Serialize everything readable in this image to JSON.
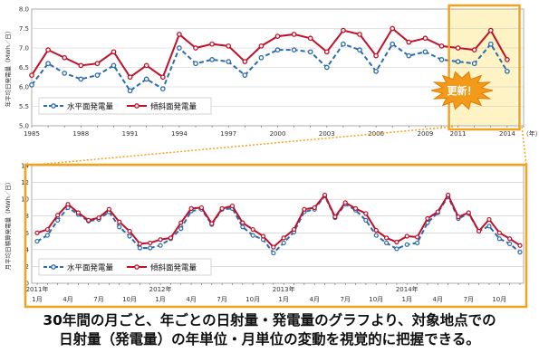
{
  "chart_data": [
    {
      "type": "line",
      "ylabel": "年平均日発電量（MWh／日）",
      "x_unit": "（年）",
      "ylim": [
        5.0,
        8.0
      ],
      "yticks": [
        "5.0",
        "5.5",
        "6.0",
        "6.5",
        "7.0",
        "7.5",
        "8.0"
      ],
      "xticks": [
        "1985",
        "1988",
        "1991",
        "1994",
        "1997",
        "2000",
        "2003",
        "2006",
        "2009",
        "2011",
        "2014"
      ],
      "grid": true,
      "legend_position": "bottom-left",
      "x": [
        1985,
        1986,
        1987,
        1988,
        1989,
        1990,
        1991,
        1992,
        1993,
        1994,
        1995,
        1996,
        1997,
        1998,
        1999,
        2000,
        2001,
        2002,
        2003,
        2004,
        2005,
        2006,
        2007,
        2008,
        2009,
        2010,
        2011,
        2012,
        2013,
        2014
      ],
      "series": [
        {
          "name": "水平面発電量",
          "color": "#2b6cb0",
          "dashed": true,
          "values": [
            6.05,
            6.6,
            6.35,
            6.2,
            6.3,
            6.55,
            5.9,
            6.2,
            5.95,
            7.0,
            6.6,
            6.7,
            6.65,
            6.3,
            6.75,
            6.95,
            6.95,
            6.9,
            6.5,
            7.1,
            6.95,
            6.4,
            7.1,
            6.8,
            6.9,
            6.7,
            6.65,
            6.6,
            7.1,
            6.4
          ]
        },
        {
          "name": "傾斜面発電量",
          "color": "#c0102a",
          "dashed": false,
          "values": [
            6.3,
            6.95,
            6.75,
            6.55,
            6.6,
            6.9,
            6.25,
            6.55,
            6.25,
            7.35,
            7.0,
            7.1,
            7.05,
            6.65,
            7.05,
            7.3,
            7.35,
            7.25,
            6.9,
            7.45,
            7.35,
            6.8,
            7.5,
            7.15,
            7.25,
            7.05,
            7.0,
            6.95,
            7.45,
            6.7
          ]
        }
      ],
      "callout": "更新！"
    },
    {
      "type": "line",
      "ylabel": "月平均日積算発電量（MWh／日）",
      "ylim": [
        0,
        14
      ],
      "yticks": [
        "0",
        "2",
        "4",
        "6",
        "8",
        "10",
        "12",
        "14"
      ],
      "year_labels": [
        "2011年",
        "2012年",
        "2013年",
        "2014年"
      ],
      "month_labels": [
        "1月",
        "4月",
        "7月",
        "10月",
        "1月",
        "4月",
        "7月",
        "10月",
        "1月",
        "4月",
        "7月",
        "10月",
        "1月",
        "4月",
        "7月",
        "10月"
      ],
      "grid": true,
      "legend_position": "bottom-left",
      "series": [
        {
          "name": "水平面発電量",
          "color": "#2b6cb0",
          "dashed": true,
          "values": [
            5.0,
            5.7,
            7.5,
            9.0,
            8.2,
            7.4,
            7.6,
            8.5,
            6.7,
            5.6,
            4.2,
            4.2,
            4.5,
            5.3,
            6.5,
            8.6,
            8.8,
            7.0,
            8.8,
            8.9,
            6.7,
            5.7,
            5.2,
            3.6,
            4.8,
            6.1,
            8.5,
            8.8,
            10.4,
            7.8,
            9.4,
            8.7,
            7.5,
            5.7,
            4.8,
            4.1,
            4.6,
            4.8,
            7.2,
            8.4,
            10.3,
            7.7,
            8.3,
            6.2,
            6.8,
            5.3,
            4.7,
            3.7
          ]
        },
        {
          "name": "傾斜面発電量",
          "color": "#c0102a",
          "dashed": false,
          "values": [
            6.0,
            6.4,
            8.1,
            9.4,
            8.4,
            7.5,
            7.8,
            8.8,
            7.3,
            6.2,
            4.7,
            4.8,
            5.2,
            5.4,
            7.2,
            8.9,
            9.0,
            7.1,
            8.9,
            9.2,
            7.2,
            6.4,
            5.6,
            4.3,
            5.4,
            6.4,
            8.8,
            9.0,
            10.5,
            7.9,
            9.6,
            8.9,
            8.3,
            6.3,
            5.4,
            4.9,
            5.6,
            5.5,
            7.7,
            8.5,
            10.5,
            7.9,
            8.4,
            6.2,
            7.6,
            6.0,
            5.3,
            4.5
          ]
        }
      ]
    }
  ],
  "caption": {
    "line1": "30年間の月ごと、年ごとの日射量・発電量のグラフより、対象地点での",
    "line2": "日射量（発電量）の年単位・月単位の変動を視覚的に把握できる。"
  }
}
